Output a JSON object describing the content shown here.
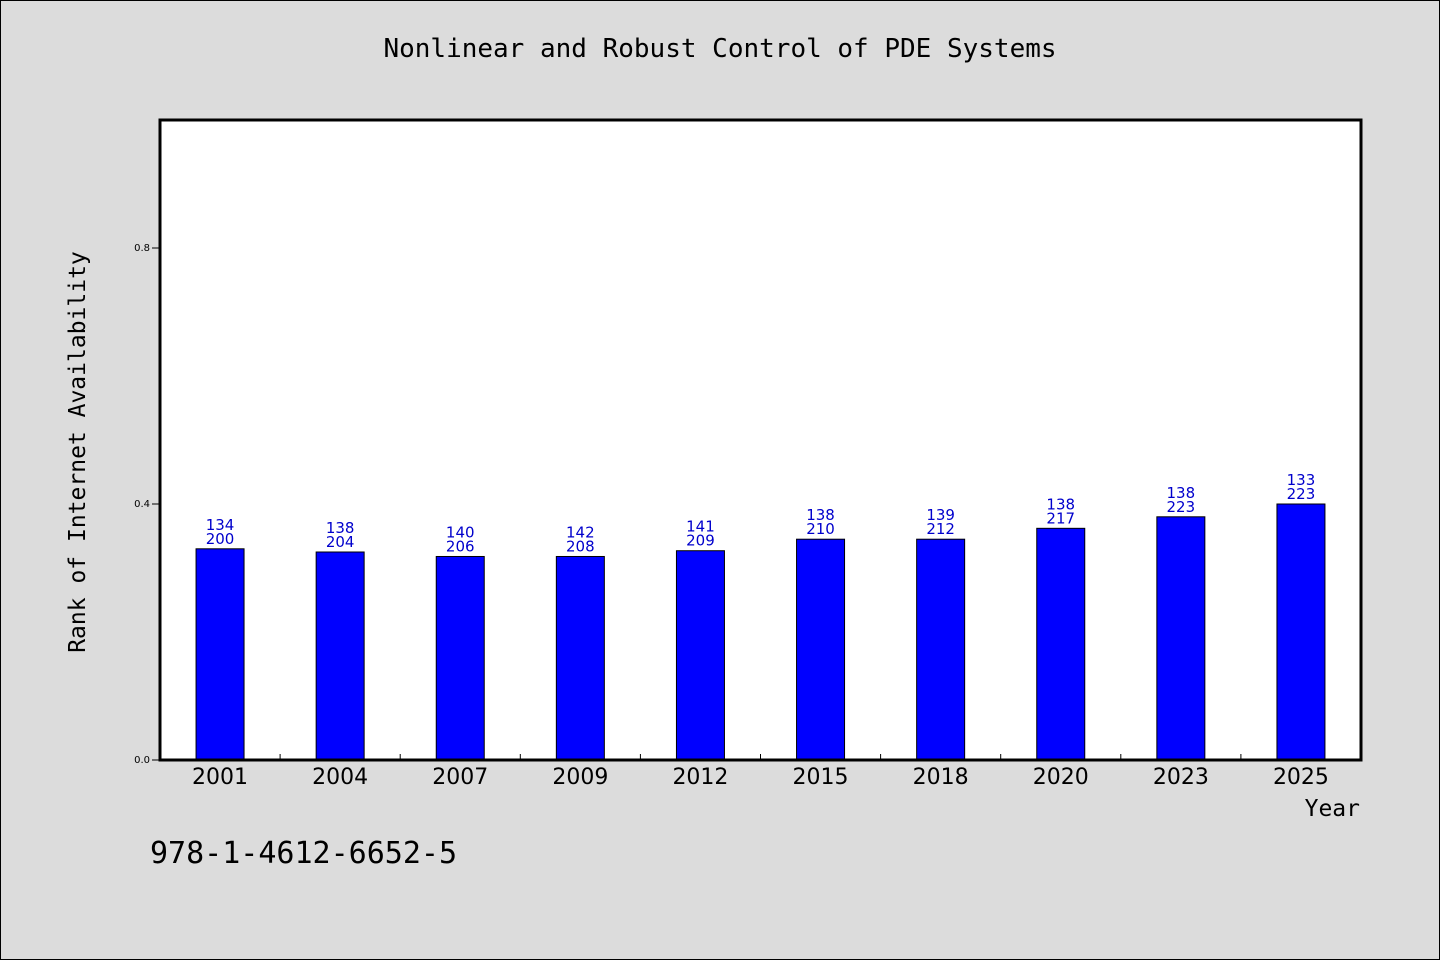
{
  "chart_data": {
    "type": "bar",
    "title": "Nonlinear and Robust Control of PDE Systems",
    "xlabel": "Year",
    "ylabel": "Rank of Internet Availability",
    "categories": [
      "2001",
      "2004",
      "2007",
      "2009",
      "2012",
      "2015",
      "2018",
      "2020",
      "2023",
      "2025"
    ],
    "values": [
      0.33,
      0.325,
      0.318,
      0.318,
      0.327,
      0.345,
      0.345,
      0.362,
      0.38,
      0.4
    ],
    "bar_labels_top": [
      "134",
      "138",
      "140",
      "142",
      "141",
      "138",
      "139",
      "138",
      "138",
      "133"
    ],
    "bar_labels_bottom": [
      "200",
      "204",
      "206",
      "208",
      "209",
      "210",
      "212",
      "217",
      "223",
      "223"
    ],
    "yticks": [
      0.0,
      0.4,
      0.8
    ],
    "ytick_labels": [
      "0.0",
      "0.4",
      "0.8"
    ],
    "ylim": [
      0,
      1
    ],
    "grid": false,
    "colors": {
      "bar": "#0000ff",
      "bar_label": "#0000cc",
      "background": "#dcdcdc",
      "plot_bg": "#ffffff"
    }
  },
  "footer": {
    "isbn": "978-1-4612-6652-5"
  }
}
